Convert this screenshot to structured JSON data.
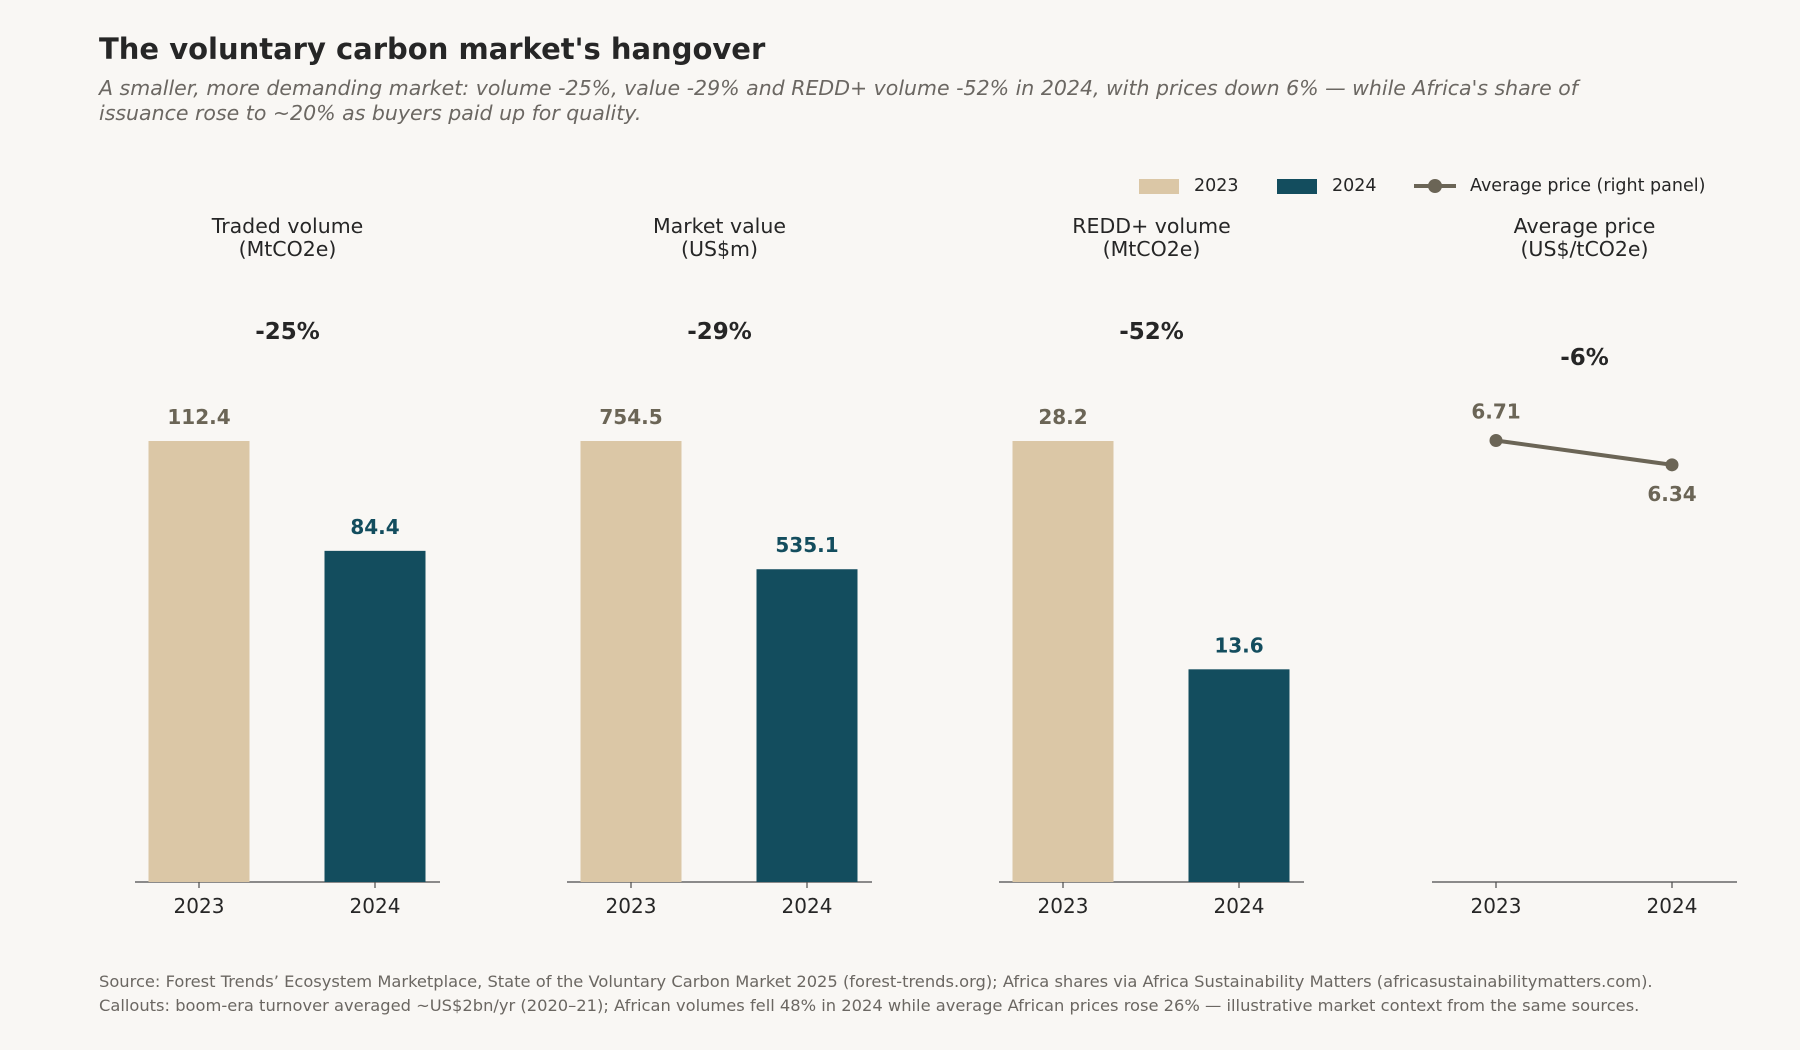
{
  "title": "The voluntary carbon market's hangover",
  "subtitle": "A smaller, more demanding market: volume -25%, value -29% and REDD+ volume -52% in 2024, with prices down 6% — while Africa's share of issuance rose to ~20% as buyers paid up for quality.",
  "legend": {
    "label_2023": "2023",
    "label_2024": "2024",
    "label_price": "Average price (right panel)"
  },
  "colors": {
    "y2023": "#dbc7a6",
    "y2024": "#134d5e",
    "price": "#6b6556",
    "label_2023": "#6b6556",
    "label_2024": "#134d5e"
  },
  "chart_data": [
    {
      "type": "bar",
      "title_lines": [
        "Traded volume",
        "(MtCO2e)"
      ],
      "categories": [
        "2023",
        "2024"
      ],
      "values": [
        112.4,
        84.4
      ],
      "value_labels": [
        "112.4",
        "84.4"
      ],
      "change": "-25%"
    },
    {
      "type": "bar",
      "title_lines": [
        "Market value",
        "(US$m)"
      ],
      "categories": [
        "2023",
        "2024"
      ],
      "values": [
        754.5,
        535.1
      ],
      "value_labels": [
        "754.5",
        "535.1"
      ],
      "change": "-29%"
    },
    {
      "type": "bar",
      "title_lines": [
        "REDD+ volume",
        "(MtCO2e)"
      ],
      "categories": [
        "2023",
        "2024"
      ],
      "values": [
        28.2,
        13.6
      ],
      "value_labels": [
        "28.2",
        "13.6"
      ],
      "change": "-52%"
    },
    {
      "type": "line",
      "title_lines": [
        "Average price",
        "(US$/tCO2e)"
      ],
      "categories": [
        "2023",
        "2024"
      ],
      "values": [
        6.71,
        6.34
      ],
      "value_labels": [
        "6.71",
        "6.34"
      ],
      "change": "-6%"
    }
  ],
  "source": "Source: Forest Trends’ Ecosystem Marketplace, State of the Voluntary Carbon Market 2025 (forest-trends.org); Africa shares via Africa Sustainability Matters (africasustainabilitymatters.com). Callouts: boom-era turnover averaged ~US$2bn/yr (2020–21); African volumes fell 48% in 2024 while average African prices rose 26% — illustrative market context from the same sources."
}
